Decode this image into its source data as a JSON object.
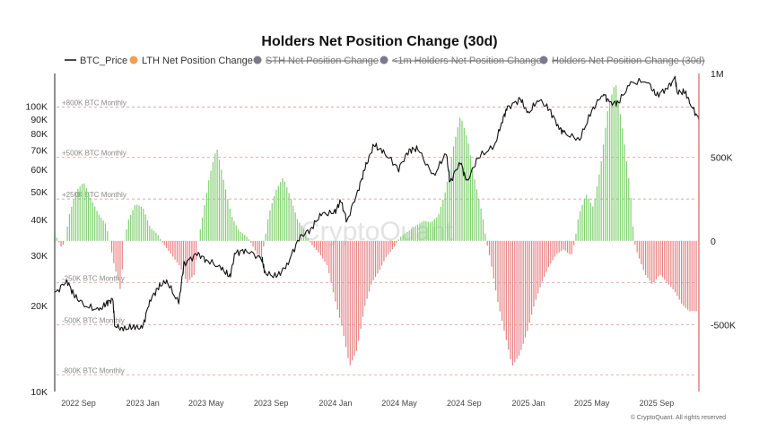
{
  "colors": {
    "price_line": "#111111",
    "positive": "#7fcf6e",
    "negative": "#e88080",
    "legend_lth": "#f0a050",
    "legend_off": "#7a7a8a",
    "right_axis": "#e06060",
    "ref_line": "#d68a8a"
  },
  "chart_data": {
    "type": "bar",
    "title": "Holders Net Position Change (30d)",
    "legend": [
      {
        "name": "BTC_Price",
        "marker": "line",
        "active": true
      },
      {
        "name": "LTH Net Position Change",
        "marker": "dot",
        "color": "#f0a050",
        "active": true
      },
      {
        "name": "STH Net Position Change",
        "marker": "dot",
        "color": "#7a7a8a",
        "active": false
      },
      {
        "name": "<1m Holders Net Position Change",
        "marker": "dot",
        "color": "#7a7a8a",
        "active": false
      },
      {
        "name": "Holders Net Position Change (30d)",
        "marker": "dot",
        "color": "#7a7a8a",
        "active": false
      }
    ],
    "x_range": [
      "2022-07-18",
      "2025-11-20"
    ],
    "x_ticks": [
      {
        "date": "2022-09-01",
        "label": "2022 Sep"
      },
      {
        "date": "2023-01-01",
        "label": "2023 Jan"
      },
      {
        "date": "2023-05-01",
        "label": "2023 May"
      },
      {
        "date": "2023-09-01",
        "label": "2023 Sep"
      },
      {
        "date": "2024-01-01",
        "label": "2024 Jan"
      },
      {
        "date": "2024-05-01",
        "label": "2024 May"
      },
      {
        "date": "2024-09-01",
        "label": "2024 Sep"
      },
      {
        "date": "2025-01-01",
        "label": "2025 Jan"
      },
      {
        "date": "2025-05-01",
        "label": "2025 May"
      },
      {
        "date": "2025-09-01",
        "label": "2025 Sep"
      }
    ],
    "left_axis": {
      "scale": "log",
      "range": [
        10000,
        130000
      ],
      "ticks": [
        {
          "value": 10000,
          "label": "10K"
        },
        {
          "value": 20000,
          "label": "20K"
        },
        {
          "value": 30000,
          "label": "30K"
        },
        {
          "value": 40000,
          "label": "40K"
        },
        {
          "value": 50000,
          "label": "50K"
        },
        {
          "value": 60000,
          "label": "60K"
        },
        {
          "value": 70000,
          "label": "70K"
        },
        {
          "value": 80000,
          "label": "80K"
        },
        {
          "value": 90000,
          "label": "90K"
        },
        {
          "value": 100000,
          "label": "100K"
        }
      ]
    },
    "right_axis": {
      "scale": "linear",
      "range": [
        -900000,
        1000000
      ],
      "ticks": [
        {
          "value": 1000000,
          "label": "1M"
        },
        {
          "value": 500000,
          "label": "500K"
        },
        {
          "value": 0,
          "label": "0"
        },
        {
          "value": -500000,
          "label": "-500K"
        }
      ]
    },
    "reference_lines": [
      {
        "value": 800000,
        "label": "+800K BTC Monthly"
      },
      {
        "value": 500000,
        "label": "+500K BTC Monthly"
      },
      {
        "value": 250000,
        "label": "+250K BTC Monthly"
      },
      {
        "value": -250000,
        "label": "-250K BTC Monthly"
      },
      {
        "value": -500000,
        "label": "-500K BTC Monthly"
      },
      {
        "value": -800000,
        "label": "-800K BTC Monthly"
      }
    ],
    "series": [
      {
        "name": "BTC_Price",
        "type": "line",
        "axis": "left",
        "points": [
          [
            "2022-07-18",
            22000
          ],
          [
            "2022-08-10",
            24500
          ],
          [
            "2022-08-25",
            21500
          ],
          [
            "2022-09-15",
            20000
          ],
          [
            "2022-10-10",
            19200
          ],
          [
            "2022-10-25",
            20500
          ],
          [
            "2022-11-05",
            21000
          ],
          [
            "2022-11-09",
            17000
          ],
          [
            "2022-11-25",
            16500
          ],
          [
            "2022-12-15",
            16900
          ],
          [
            "2022-12-31",
            16600
          ],
          [
            "2023-01-14",
            20800
          ],
          [
            "2023-01-31",
            23200
          ],
          [
            "2023-02-15",
            24500
          ],
          [
            "2023-03-10",
            20300
          ],
          [
            "2023-03-20",
            28000
          ],
          [
            "2023-04-14",
            30400
          ],
          [
            "2023-05-01",
            29000
          ],
          [
            "2023-05-30",
            27000
          ],
          [
            "2023-06-15",
            25200
          ],
          [
            "2023-06-25",
            30500
          ],
          [
            "2023-07-14",
            31300
          ],
          [
            "2023-08-15",
            29200
          ],
          [
            "2023-08-20",
            26100
          ],
          [
            "2023-09-11",
            25200
          ],
          [
            "2023-10-01",
            27600
          ],
          [
            "2023-10-24",
            34500
          ],
          [
            "2023-11-15",
            37000
          ],
          [
            "2023-12-05",
            41800
          ],
          [
            "2023-12-31",
            42300
          ],
          [
            "2024-01-11",
            46700
          ],
          [
            "2024-01-23",
            39500
          ],
          [
            "2024-02-15",
            52000
          ],
          [
            "2024-02-28",
            62000
          ],
          [
            "2024-03-14",
            73000
          ],
          [
            "2024-04-01",
            69000
          ],
          [
            "2024-04-30",
            60500
          ],
          [
            "2024-05-20",
            70000
          ],
          [
            "2024-06-05",
            71000
          ],
          [
            "2024-07-05",
            56500
          ],
          [
            "2024-07-29",
            69000
          ],
          [
            "2024-08-05",
            54000
          ],
          [
            "2024-08-25",
            64000
          ],
          [
            "2024-09-06",
            53900
          ],
          [
            "2024-09-27",
            66000
          ],
          [
            "2024-10-29",
            72500
          ],
          [
            "2024-11-13",
            90000
          ],
          [
            "2024-11-22",
            98500
          ],
          [
            "2024-12-17",
            106000
          ],
          [
            "2024-12-31",
            93500
          ],
          [
            "2025-01-20",
            106000
          ],
          [
            "2025-02-10",
            97000
          ],
          [
            "2025-02-28",
            84000
          ],
          [
            "2025-03-10",
            80000
          ],
          [
            "2025-04-08",
            76500
          ],
          [
            "2025-05-01",
            96000
          ],
          [
            "2025-05-22",
            111000
          ],
          [
            "2025-06-05",
            102000
          ],
          [
            "2025-06-20",
            103000
          ],
          [
            "2025-07-14",
            120000
          ],
          [
            "2025-08-14",
            123000
          ],
          [
            "2025-08-31",
            108500
          ],
          [
            "2025-09-20",
            115500
          ],
          [
            "2025-10-06",
            124500
          ],
          [
            "2025-10-10",
            112000
          ],
          [
            "2025-10-25",
            111500
          ],
          [
            "2025-11-05",
            101000
          ],
          [
            "2025-11-20",
            89500
          ]
        ]
      },
      {
        "name": "LTH Net Position Change",
        "type": "bar",
        "axis": "right",
        "points": [
          [
            "2022-07-18",
            50000
          ],
          [
            "2022-07-31",
            -40000
          ],
          [
            "2022-08-14",
            150000
          ],
          [
            "2022-08-28",
            300000
          ],
          [
            "2022-09-11",
            350000
          ],
          [
            "2022-09-25",
            250000
          ],
          [
            "2022-10-09",
            160000
          ],
          [
            "2022-10-23",
            100000
          ],
          [
            "2022-11-06",
            -120000
          ],
          [
            "2022-11-20",
            -300000
          ],
          [
            "2022-12-04",
            120000
          ],
          [
            "2022-12-18",
            220000
          ],
          [
            "2023-01-01",
            200000
          ],
          [
            "2023-01-15",
            80000
          ],
          [
            "2023-01-29",
            40000
          ],
          [
            "2023-02-12",
            -30000
          ],
          [
            "2023-02-26",
            -90000
          ],
          [
            "2023-03-12",
            -150000
          ],
          [
            "2023-03-26",
            -250000
          ],
          [
            "2023-04-09",
            -200000
          ],
          [
            "2023-04-23",
            120000
          ],
          [
            "2023-05-07",
            380000
          ],
          [
            "2023-05-21",
            560000
          ],
          [
            "2023-06-04",
            350000
          ],
          [
            "2023-06-18",
            150000
          ],
          [
            "2023-07-02",
            60000
          ],
          [
            "2023-07-16",
            30000
          ],
          [
            "2023-07-30",
            -40000
          ],
          [
            "2023-08-13",
            -120000
          ],
          [
            "2023-08-27",
            150000
          ],
          [
            "2023-09-10",
            300000
          ],
          [
            "2023-09-24",
            380000
          ],
          [
            "2023-10-08",
            260000
          ],
          [
            "2023-10-22",
            120000
          ],
          [
            "2023-11-05",
            60000
          ],
          [
            "2023-11-19",
            -30000
          ],
          [
            "2023-12-03",
            -80000
          ],
          [
            "2023-12-17",
            -150000
          ],
          [
            "2023-12-31",
            -350000
          ],
          [
            "2024-01-14",
            -520000
          ],
          [
            "2024-01-28",
            -750000
          ],
          [
            "2024-02-11",
            -650000
          ],
          [
            "2024-02-25",
            -400000
          ],
          [
            "2024-03-10",
            -250000
          ],
          [
            "2024-03-24",
            -180000
          ],
          [
            "2024-04-07",
            -90000
          ],
          [
            "2024-04-21",
            -40000
          ],
          [
            "2024-05-05",
            30000
          ],
          [
            "2024-05-19",
            60000
          ],
          [
            "2024-06-02",
            90000
          ],
          [
            "2024-06-16",
            120000
          ],
          [
            "2024-06-30",
            110000
          ],
          [
            "2024-07-14",
            150000
          ],
          [
            "2024-07-28",
            300000
          ],
          [
            "2024-08-11",
            550000
          ],
          [
            "2024-08-25",
            750000
          ],
          [
            "2024-09-08",
            600000
          ],
          [
            "2024-09-22",
            350000
          ],
          [
            "2024-10-06",
            150000
          ],
          [
            "2024-10-20",
            -100000
          ],
          [
            "2024-11-03",
            -350000
          ],
          [
            "2024-11-17",
            -550000
          ],
          [
            "2024-12-01",
            -750000
          ],
          [
            "2024-12-15",
            -680000
          ],
          [
            "2024-12-29",
            -550000
          ],
          [
            "2025-01-12",
            -380000
          ],
          [
            "2025-01-26",
            -250000
          ],
          [
            "2025-02-09",
            -150000
          ],
          [
            "2025-02-23",
            -80000
          ],
          [
            "2025-03-09",
            -50000
          ],
          [
            "2025-03-23",
            -90000
          ],
          [
            "2025-04-06",
            150000
          ],
          [
            "2025-04-20",
            280000
          ],
          [
            "2025-05-04",
            200000
          ],
          [
            "2025-05-18",
            450000
          ],
          [
            "2025-06-01",
            800000
          ],
          [
            "2025-06-15",
            950000
          ],
          [
            "2025-06-29",
            650000
          ],
          [
            "2025-07-13",
            300000
          ],
          [
            "2025-07-27",
            -80000
          ],
          [
            "2025-08-10",
            -200000
          ],
          [
            "2025-08-24",
            -260000
          ],
          [
            "2025-09-07",
            -200000
          ],
          [
            "2025-09-21",
            -250000
          ],
          [
            "2025-10-05",
            -300000
          ],
          [
            "2025-10-19",
            -380000
          ],
          [
            "2025-11-02",
            -420000
          ],
          [
            "2025-11-16",
            -420000
          ]
        ]
      }
    ]
  },
  "watermark": "CryptoQuant",
  "credit": "© CryptoQuant. All rights reserved"
}
